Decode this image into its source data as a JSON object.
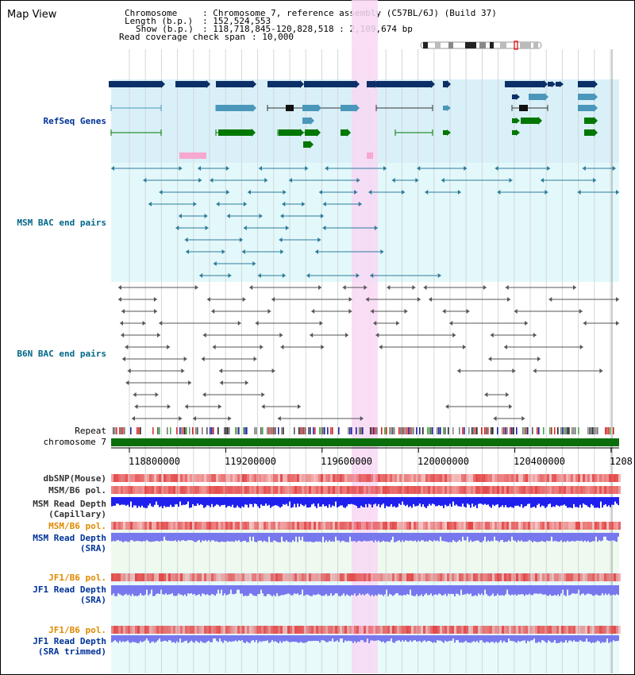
{
  "title": "Map View",
  "info": {
    "chrom_key": "Chromosome",
    "chrom_val": ": Chromosome 7, reference assembly (C57BL/6J) (Build 37)",
    "length_key": "Length (b.p.)",
    "length_val": ": 152,524,553",
    "show_key": "Show (b.p.)",
    "show_val": ": 118,718,845-120,828,518 : 2,109,674 bp",
    "span_key": "Read coverage check span",
    "span_val": ": 10,000"
  },
  "tracks": {
    "refseq": "RefSeq Genes",
    "msm_bac": "MSM BAC end pairs",
    "b6n_bac": "B6N BAC end pairs",
    "repeat": "Repeat",
    "chromosome": "chromosome 7",
    "dbsnp": "dbSNP(Mouse)",
    "msm_pol1": "MSM/B6 pol.",
    "msm_depth_cap1": "MSM Read Depth",
    "msm_depth_cap2": "(Capillary)",
    "msm_pol2": "MSM/B6 pol.",
    "msm_depth_sra1": "MSM Read Depth",
    "msm_depth_sra2": "(SRA)",
    "jf1_pol1": "JF1/B6 pol.",
    "jf1_depth1": "JF1 Read Depth",
    "jf1_depth1b": "(SRA)",
    "jf1_pol2": "JF1/B6 pol.",
    "jf1_depth2": "JF1 Read Depth",
    "jf1_depth2b": "(SRA trimmed)"
  },
  "axis_ticks": [
    "118800000",
    "119200000",
    "119600000",
    "120000000",
    "120400000",
    "1208"
  ],
  "colors": {
    "refseq_bg": "#daf0f8",
    "msm_bg": "#e3f8fb",
    "navy": "#0b2f66",
    "steel": "#4a97bb",
    "green": "#007700",
    "pink": "#f6a8d0",
    "highlight": "#f8d8f4",
    "chromosome": "#0a6f0a",
    "snp_red": "#e34848",
    "depth_blue": "#2020ee",
    "depth_light": "#7878ee",
    "label_blue": "#003399",
    "label_teal": "#006688",
    "label_orange": "#e08a00"
  }
}
